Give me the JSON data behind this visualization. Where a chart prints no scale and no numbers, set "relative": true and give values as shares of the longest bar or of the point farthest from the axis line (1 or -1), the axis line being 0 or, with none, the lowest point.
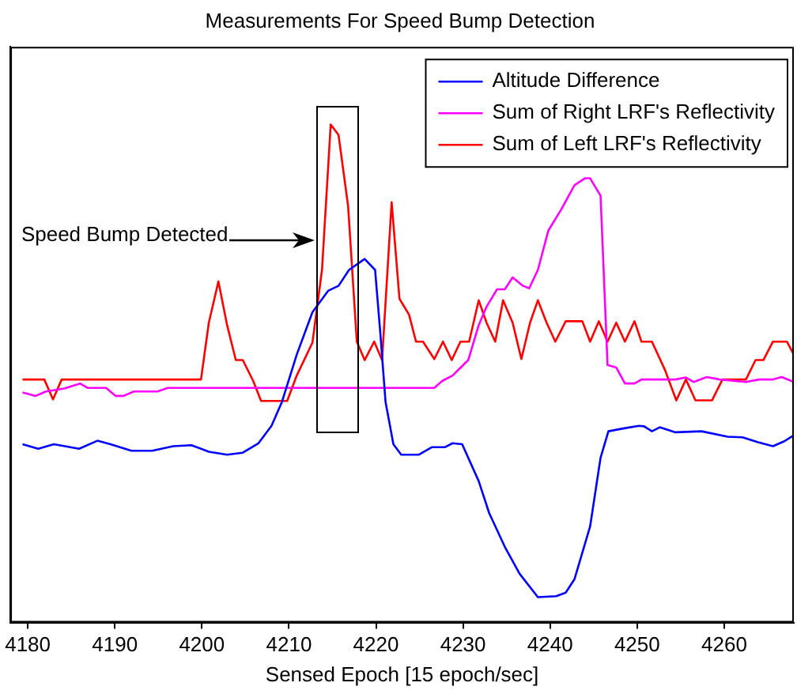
{
  "chart_data": {
    "type": "line",
    "title": "Measurements For Speed Bump Detection",
    "xlabel": "Sensed Epoch [15 epoch/sec]",
    "relative": true,
    "legend": "top right",
    "xlim": [
      4178,
      4268
    ],
    "xticks": [
      4180,
      4190,
      4200,
      4210,
      4220,
      4230,
      4240,
      4250,
      4260
    ],
    "annotations": [
      "Speed Bump Detected"
    ],
    "series": [
      {
        "name": "Altitude Difference",
        "color": "#0000ff",
        "x": [
          4179.4,
          4181.2,
          4183.0,
          4185.9,
          4188.0,
          4189.5,
          4191.9,
          4194.3,
          4196.7,
          4198.8,
          4200.8,
          4202.9,
          4204.7,
          4206.5,
          4208.0,
          4209.2,
          4210.9,
          4212.7,
          4214.5,
          4215.7,
          4216.9,
          4218.7,
          4219.9,
          4220.5,
          4221.1,
          4222.0,
          4222.9,
          4224.9,
          4226.4,
          4227.9,
          4228.8,
          4229.9,
          4231.8,
          4233.0,
          4234.8,
          4236.5,
          4238.6,
          4240.7,
          4241.8,
          4242.8,
          4244.6,
          4245.8,
          4246.7,
          4248.5,
          4250.2,
          4250.8,
          4251.7,
          4252.6,
          4254.4,
          4257.4,
          4260.4,
          4262.1,
          4263.9,
          4265.6,
          4266.9,
          4268.0
        ],
        "values": [
          0.358,
          0.349,
          0.358,
          0.349,
          0.365,
          0.358,
          0.345,
          0.345,
          0.354,
          0.356,
          0.343,
          0.337,
          0.341,
          0.36,
          0.395,
          0.443,
          0.538,
          0.623,
          0.666,
          0.676,
          0.708,
          0.73,
          0.708,
          0.581,
          0.443,
          0.358,
          0.337,
          0.337,
          0.352,
          0.352,
          0.36,
          0.358,
          0.284,
          0.22,
          0.152,
          0.098,
          0.051,
          0.053,
          0.06,
          0.087,
          0.193,
          0.331,
          0.384,
          0.39,
          0.395,
          0.394,
          0.384,
          0.392,
          0.382,
          0.384,
          0.373,
          0.372,
          0.362,
          0.354,
          0.364,
          0.376
        ]
      },
      {
        "name": "Sum of Right LRF's Reflectivity",
        "color": "#ff00ff",
        "x": [
          4179.4,
          4180.9,
          4182.1,
          4184.2,
          4186.0,
          4186.9,
          4189.0,
          4190.1,
          4191.0,
          4192.2,
          4194.9,
          4196.1,
          4226.7,
          4227.6,
          4228.8,
          4230.6,
          4231.8,
          4232.7,
          4233.9,
          4234.8,
          4235.7,
          4236.9,
          4237.6,
          4238.6,
          4239.8,
          4241.3,
          4242.8,
          4244.0,
          4244.6,
          4245.8,
          4246.6,
          4247.6,
          4248.6,
          4249.7,
          4250.5,
          4254.4,
          4255.6,
          4256.5,
          4258.0,
          4259.5,
          4262.5,
          4264.0,
          4265.6,
          4266.6,
          4268.0
        ],
        "values": [
          0.462,
          0.455,
          0.464,
          0.47,
          0.48,
          0.471,
          0.471,
          0.455,
          0.455,
          0.464,
          0.464,
          0.471,
          0.471,
          0.485,
          0.496,
          0.527,
          0.597,
          0.634,
          0.669,
          0.669,
          0.693,
          0.676,
          0.671,
          0.708,
          0.787,
          0.83,
          0.878,
          0.892,
          0.892,
          0.857,
          0.517,
          0.512,
          0.48,
          0.48,
          0.488,
          0.488,
          0.492,
          0.483,
          0.493,
          0.488,
          0.483,
          0.488,
          0.488,
          0.493,
          0.483
        ]
      },
      {
        "name": "Sum of Left LRF's Reflectivity",
        "color": "#ff0000",
        "x": [
          4179.4,
          4181.9,
          4182.9,
          4183.9,
          4199.9,
          4200.8,
          4201.9,
          4202.9,
          4203.9,
          4204.7,
          4205.9,
          4206.8,
          4209.8,
          4210.9,
          4212.7,
          4213.8,
          4214.8,
          4215.7,
          4216.8,
          4217.8,
          4218.7,
          4219.8,
          4220.7,
          4221.8,
          4222.7,
          4223.8,
          4224.6,
          4225.4,
          4226.7,
          4227.7,
          4228.7,
          4229.7,
          4230.7,
          4231.8,
          4232.7,
          4233.7,
          4234.6,
          4235.7,
          4236.7,
          4237.7,
          4238.6,
          4239.6,
          4240.6,
          4241.8,
          4243.7,
          4244.6,
          4245.6,
          4246.6,
          4247.6,
          4248.6,
          4249.7,
          4250.5,
          4251.7,
          4253.2,
          4254.5,
          4255.6,
          4256.7,
          4258.6,
          4259.8,
          4262.5,
          4263.6,
          4264.5,
          4265.6,
          4267.2,
          4268.0
        ],
        "values": [
          0.488,
          0.488,
          0.448,
          0.488,
          0.488,
          0.602,
          0.685,
          0.597,
          0.527,
          0.527,
          0.485,
          0.445,
          0.445,
          0.496,
          0.562,
          0.708,
          1,
          0.979,
          0.836,
          0.564,
          0.527,
          0.564,
          0.527,
          0.844,
          0.65,
          0.618,
          0.564,
          0.564,
          0.529,
          0.564,
          0.527,
          0.564,
          0.564,
          0.647,
          0.602,
          0.564,
          0.647,
          0.602,
          0.529,
          0.602,
          0.647,
          0.602,
          0.564,
          0.605,
          0.605,
          0.564,
          0.605,
          0.564,
          0.602,
          0.564,
          0.605,
          0.564,
          0.564,
          0.507,
          0.446,
          0.488,
          0.446,
          0.446,
          0.488,
          0.488,
          0.527,
          0.527,
          0.564,
          0.564,
          0.538
        ]
      }
    ]
  }
}
